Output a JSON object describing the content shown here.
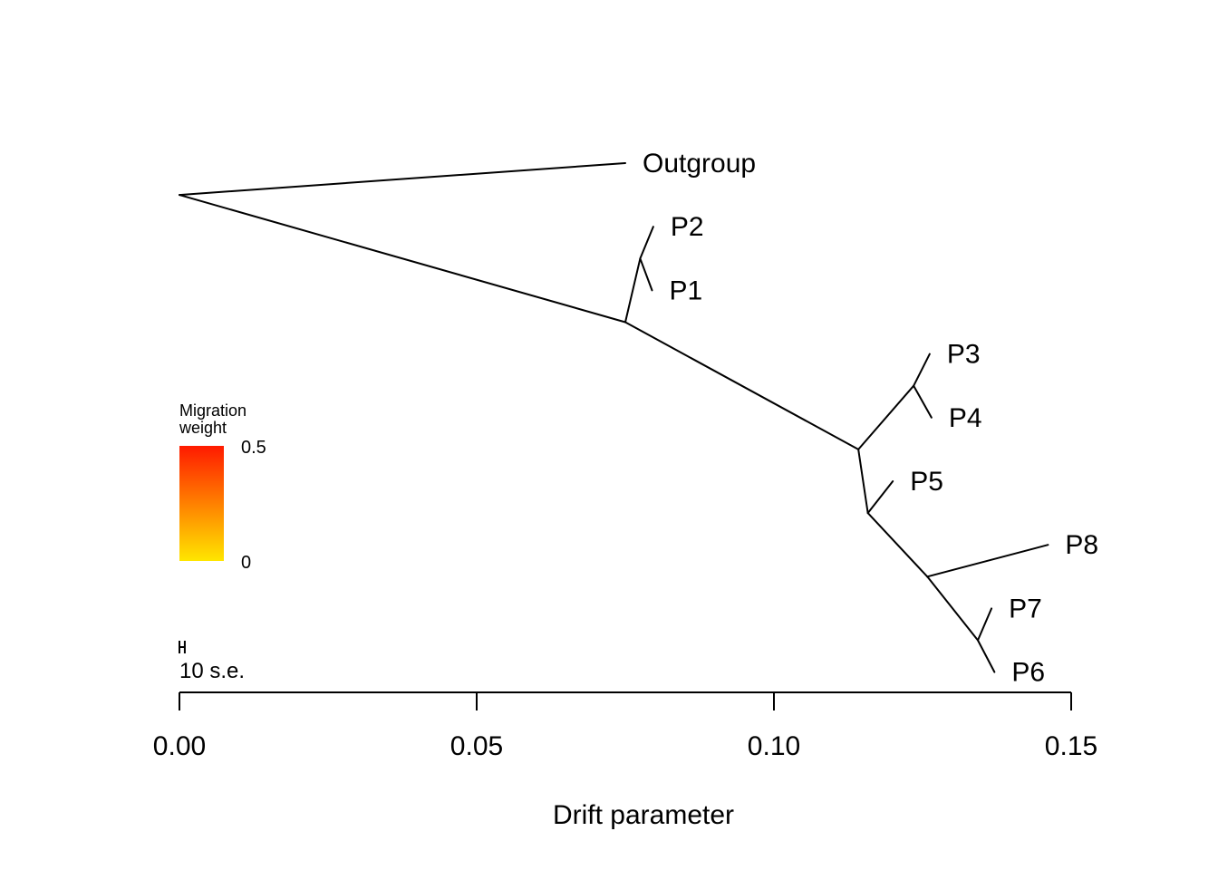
{
  "chart_data": {
    "type": "tree",
    "xlabel": "Drift parameter",
    "xlim": [
      0,
      0.15
    ],
    "x_ticks": [
      {
        "value": 0.0,
        "label": "0.00"
      },
      {
        "value": 0.05,
        "label": "0.05"
      },
      {
        "value": 0.1,
        "label": "0.10"
      },
      {
        "value": 0.15,
        "label": "0.15"
      }
    ],
    "nodes": [
      {
        "id": "root",
        "x": 0.0,
        "row": 0.5
      },
      {
        "id": "n1",
        "x": 0.075,
        "row": 2.5
      },
      {
        "id": "n2",
        "x": 0.0775,
        "row": 1.5
      },
      {
        "id": "n3",
        "x": 0.1142,
        "row": 4.5
      },
      {
        "id": "n4",
        "x": 0.1235,
        "row": 3.5
      },
      {
        "id": "n5",
        "x": 0.1158,
        "row": 5.5
      },
      {
        "id": "n6",
        "x": 0.1258,
        "row": 6.5
      },
      {
        "id": "n7",
        "x": 0.1343,
        "row": 7.5
      }
    ],
    "tips": [
      {
        "id": "outgroup",
        "label": "Outgroup",
        "x": 0.075,
        "row": 0
      },
      {
        "id": "p2",
        "label": "P2",
        "x": 0.0797,
        "row": 1
      },
      {
        "id": "p1",
        "label": "P1",
        "x": 0.0795,
        "row": 2
      },
      {
        "id": "p3",
        "label": "P3",
        "x": 0.1262,
        "row": 3
      },
      {
        "id": "p4",
        "label": "P4",
        "x": 0.1265,
        "row": 4
      },
      {
        "id": "p5",
        "label": "P5",
        "x": 0.12,
        "row": 5
      },
      {
        "id": "p8",
        "label": "P8",
        "x": 0.1461,
        "row": 6
      },
      {
        "id": "p7",
        "label": "P7",
        "x": 0.1366,
        "row": 7
      },
      {
        "id": "p6",
        "label": "P6",
        "x": 0.1371,
        "row": 8
      }
    ],
    "edges": [
      [
        "root",
        "outgroup"
      ],
      [
        "root",
        "n1"
      ],
      [
        "n1",
        "n2"
      ],
      [
        "n2",
        "p2"
      ],
      [
        "n2",
        "p1"
      ],
      [
        "n1",
        "n3"
      ],
      [
        "n3",
        "n4"
      ],
      [
        "n4",
        "p3"
      ],
      [
        "n4",
        "p4"
      ],
      [
        "n3",
        "n5"
      ],
      [
        "n5",
        "p5"
      ],
      [
        "n5",
        "n6"
      ],
      [
        "n6",
        "p8"
      ],
      [
        "n6",
        "n7"
      ],
      [
        "n7",
        "p7"
      ],
      [
        "n7",
        "p6"
      ]
    ],
    "migration_edges": [],
    "legend": {
      "title_line1": "Migration",
      "title_line2": "weight",
      "max_label": "0.5",
      "min_label": "0",
      "color_high": "#ff1a00",
      "color_low": "#ffe600",
      "placement": "middle-left"
    },
    "scale_bar": {
      "label": "10 s.e.",
      "length": 0.0009
    }
  }
}
